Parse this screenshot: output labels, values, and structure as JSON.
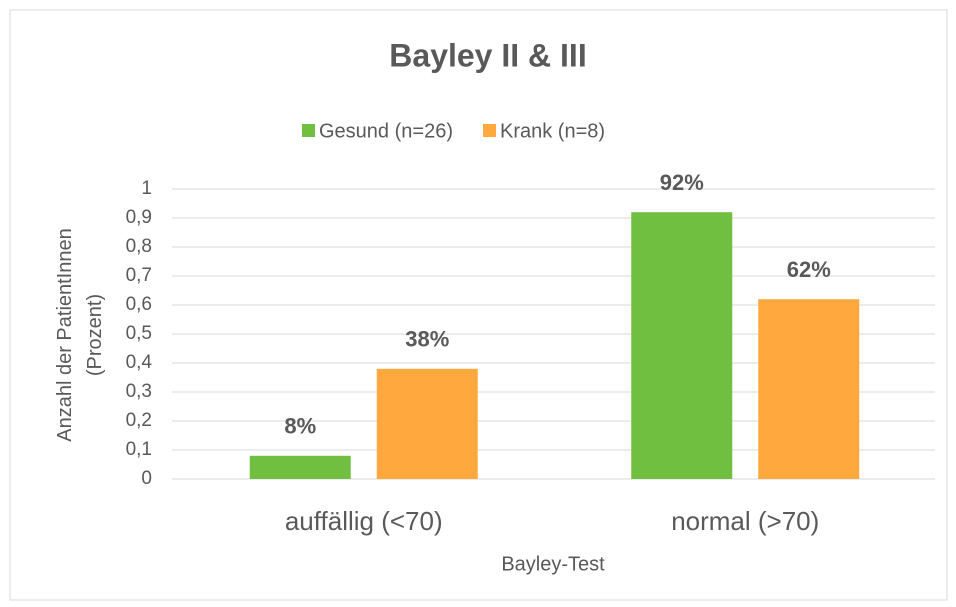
{
  "chart_data": {
    "type": "bar",
    "title": "Bayley II & III",
    "categories": [
      "auffällig (<70)",
      "normal (>70)"
    ],
    "series": [
      {
        "name": "Gesund (n=26)",
        "color": "#70bf41",
        "values": [
          0.08,
          0.92
        ],
        "value_labels": [
          "8%",
          "92%"
        ]
      },
      {
        "name": "Krank (n=8)",
        "color": "#ffa83e",
        "values": [
          0.38,
          0.62
        ],
        "value_labels": [
          "38%",
          "62%"
        ]
      }
    ],
    "xlabel": "Bayley-Test",
    "ylabel": "Anzahl der PatientInnen (Prozent)",
    "ylim": [
      0,
      1
    ],
    "yticks": [
      0,
      {
        "value": 0.1,
        "label": "0,1"
      },
      {
        "value": 0.2,
        "label": "0,2"
      },
      {
        "value": 0.3,
        "label": "0,3"
      },
      {
        "value": 0.4,
        "label": "0,4"
      },
      {
        "value": 0.5,
        "label": "0,5"
      },
      {
        "value": 0.6,
        "label": "0,6"
      },
      {
        "value": 0.7,
        "label": "0,7"
      },
      {
        "value": 0.8,
        "label": "0,8"
      },
      {
        "value": 0.9,
        "label": "0,9"
      },
      1
    ],
    "grid": true,
    "legend": "top"
  }
}
